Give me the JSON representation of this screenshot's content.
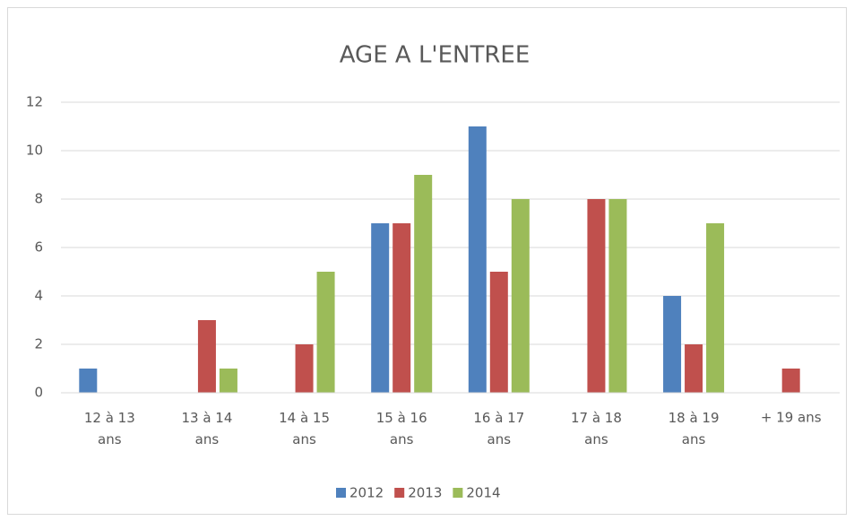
{
  "chart_data": {
    "type": "bar",
    "title": "AGE A L'ENTREE",
    "categories": [
      "12 à 13 ans",
      "13 à 14 ans",
      "14 à 15 ans",
      "15 à 16 ans",
      "16 à 17 ans",
      "17 à 18 ans",
      "18 à 19 ans",
      "+ 19 ans"
    ],
    "series": [
      {
        "name": "2012",
        "color": "#4f81bd",
        "values": [
          1,
          0,
          0,
          7,
          11,
          0,
          4,
          0
        ]
      },
      {
        "name": "2013",
        "color": "#c0504d",
        "values": [
          0,
          3,
          2,
          7,
          5,
          8,
          2,
          1
        ]
      },
      {
        "name": "2014",
        "color": "#9bbb59",
        "values": [
          0,
          1,
          5,
          9,
          8,
          8,
          7,
          0
        ]
      }
    ],
    "ylim": [
      0,
      12
    ],
    "yticks": [
      0,
      2,
      4,
      6,
      8,
      10,
      12
    ],
    "grid": true,
    "legend": "bottom"
  }
}
